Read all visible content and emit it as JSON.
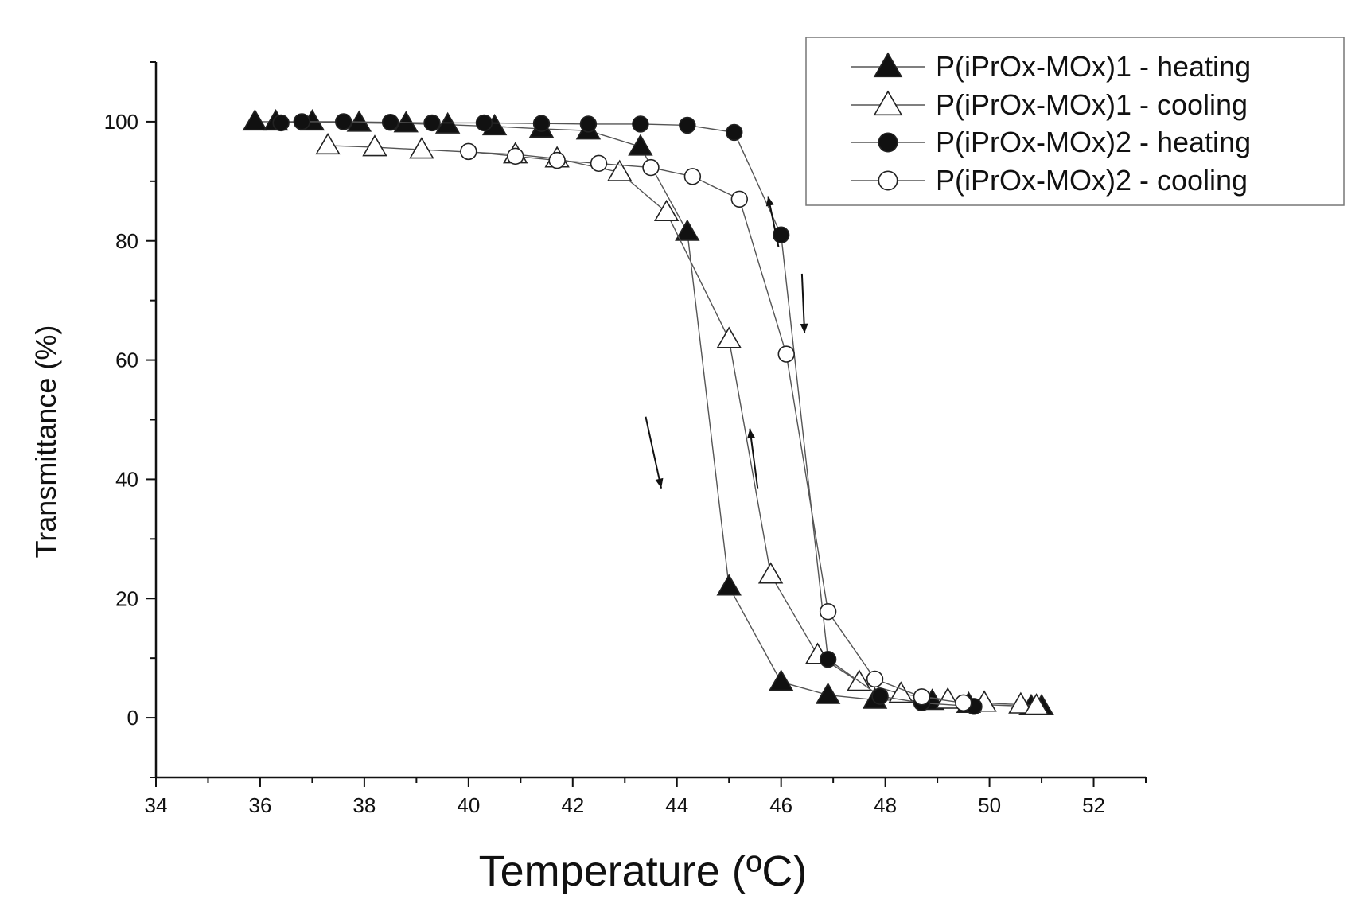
{
  "chart_data": {
    "type": "line",
    "xlabel": "Temperature (ºC)",
    "ylabel": "Transmittance (%)",
    "xlim": [
      34,
      53
    ],
    "ylim": [
      -10,
      110
    ],
    "xticks": [
      34,
      36,
      38,
      40,
      42,
      44,
      46,
      48,
      50,
      52
    ],
    "yticks": [
      0,
      20,
      40,
      60,
      80,
      100
    ],
    "grid": false,
    "legend_position": "top-right",
    "series": [
      {
        "name": "P(iPrOx-MOx)1 - heating",
        "marker": "triangle",
        "filled": true,
        "x": [
          35.9,
          36.3,
          37.0,
          37.9,
          38.8,
          39.6,
          40.5,
          41.4,
          42.3,
          43.3,
          44.2,
          45.0,
          46.0,
          46.9,
          47.8,
          48.9,
          49.6,
          50.8,
          51.0
        ],
        "y": [
          100,
          100,
          100,
          99.8,
          99.7,
          99.5,
          99.2,
          98.8,
          98.5,
          95.8,
          81.5,
          22.0,
          6.0,
          3.8,
          3.0,
          2.8,
          2.3,
          1.9,
          1.9
        ]
      },
      {
        "name": "P(iPrOx-MOx)1 - cooling",
        "marker": "triangle",
        "filled": false,
        "x": [
          37.3,
          38.2,
          39.1,
          40.9,
          41.7,
          42.9,
          43.8,
          45.0,
          45.8,
          46.7,
          47.5,
          48.3,
          49.2,
          49.9,
          50.6,
          50.9
        ],
        "y": [
          96.0,
          95.7,
          95.3,
          94.5,
          93.8,
          91.5,
          84.8,
          63.5,
          24.0,
          10.5,
          6.0,
          4.0,
          3.0,
          2.5,
          2.2,
          2.0
        ]
      },
      {
        "name": "P(iPrOx-MOx)2 - heating",
        "marker": "circle",
        "filled": true,
        "x": [
          36.4,
          36.8,
          37.6,
          38.5,
          39.3,
          40.3,
          41.4,
          42.3,
          43.3,
          44.2,
          45.1,
          46.0,
          46.9,
          47.9,
          48.7,
          49.7
        ],
        "y": [
          99.8,
          100,
          100,
          99.9,
          99.8,
          99.8,
          99.7,
          99.6,
          99.6,
          99.4,
          98.2,
          81.0,
          9.8,
          3.6,
          2.5,
          1.9
        ]
      },
      {
        "name": "P(iPrOx-MOx)2 - cooling",
        "marker": "circle",
        "filled": false,
        "x": [
          40.0,
          40.9,
          41.7,
          42.5,
          43.5,
          44.3,
          45.2,
          46.1,
          46.9,
          47.8,
          48.7,
          49.5
        ],
        "y": [
          95.0,
          94.2,
          93.5,
          93.0,
          92.3,
          90.8,
          87.0,
          61.0,
          17.8,
          6.5,
          3.5,
          2.5
        ]
      }
    ]
  }
}
